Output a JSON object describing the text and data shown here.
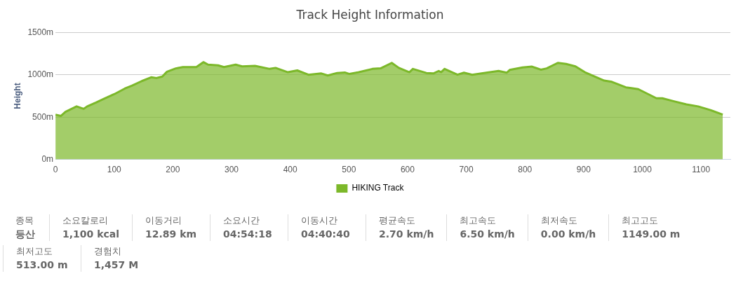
{
  "chart_data": {
    "type": "area",
    "title": "Track Height Information",
    "ylabel": "Height",
    "legend": "bottom",
    "grid": "y",
    "marker": "none",
    "xlim": [
      0,
      1150
    ],
    "xticks": [
      0,
      100,
      200,
      300,
      400,
      500,
      600,
      700,
      800,
      900,
      1000,
      1100
    ],
    "ylim": [
      0,
      1500
    ],
    "yticks": [
      {
        "value": 0,
        "label": "0m"
      },
      {
        "value": 500,
        "label": "500m"
      },
      {
        "value": 1000,
        "label": "1000m"
      },
      {
        "value": 1500,
        "label": "1500m"
      }
    ],
    "x": [
      0,
      9,
      17,
      36,
      48,
      54,
      69,
      81,
      100,
      118,
      130,
      147,
      163,
      172,
      182,
      190,
      205,
      217,
      240,
      252,
      260,
      277,
      287,
      307,
      318,
      340,
      365,
      375,
      396,
      412,
      431,
      453,
      464,
      480,
      493,
      501,
      517,
      540,
      554,
      573,
      585,
      603,
      609,
      632,
      644,
      653,
      657,
      663,
      685,
      696,
      710,
      730,
      755,
      769,
      774,
      796,
      812,
      827,
      837,
      856,
      870,
      886,
      902,
      935,
      948,
      972,
      981,
      993,
      1024,
      1034,
      1054,
      1075,
      1095,
      1116,
      1137
    ],
    "series": [
      {
        "name": "HIKING Track",
        "color": "#7cb82a",
        "values": [
          529,
          514,
          562,
          627,
          598,
          627,
          672,
          711,
          771,
          837,
          872,
          926,
          971,
          962,
          980,
          1037,
          1076,
          1091,
          1091,
          1150,
          1120,
          1112,
          1091,
          1120,
          1100,
          1106,
          1070,
          1082,
          1031,
          1052,
          1001,
          1016,
          992,
          1022,
          1028,
          1010,
          1031,
          1070,
          1076,
          1141,
          1082,
          1031,
          1070,
          1022,
          1016,
          1046,
          1031,
          1070,
          1001,
          1025,
          1001,
          1022,
          1046,
          1025,
          1058,
          1088,
          1097,
          1061,
          1076,
          1141,
          1129,
          1100,
          1031,
          932,
          917,
          852,
          843,
          831,
          723,
          723,
          687,
          651,
          627,
          583,
          529
        ]
      }
    ],
    "annotations": [
      "종목",
      "등산",
      "소요칼로리",
      "1,100 kcal",
      "이동거리",
      "12.89 km",
      "소요시간",
      "04:54:18",
      "이동시간",
      "04:40:40",
      "평균속도",
      "2.70 km/h",
      "최고속도",
      "6.50 km/h",
      "최저속도",
      "0.00 km/h",
      "최고고도",
      "1149.00 m",
      "최저고도",
      "513.00 m",
      "경험치",
      "1,457 M"
    ]
  }
}
